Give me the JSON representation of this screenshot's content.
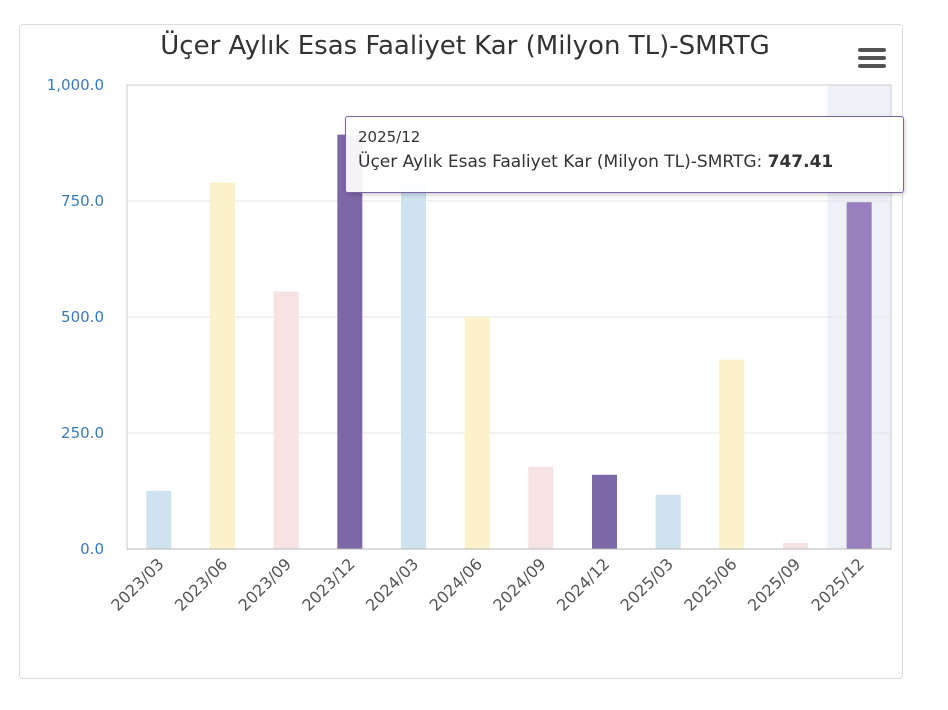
{
  "chart_data": {
    "type": "bar",
    "title": "Üçer Aylık Esas Faaliyet Kar (Milyon TL)-SMRTG",
    "xlabel": "",
    "ylabel": "",
    "ylim": [
      0,
      1000
    ],
    "yticks": [
      "0.0",
      "250.0",
      "500.0",
      "750.0",
      "1,000.0"
    ],
    "categories": [
      "2023/03",
      "2023/06",
      "2023/09",
      "2023/12",
      "2024/03",
      "2024/06",
      "2024/09",
      "2024/12",
      "2025/03",
      "2025/06",
      "2025/09",
      "2025/12"
    ],
    "values": [
      125,
      790,
      555,
      893,
      790,
      500,
      177,
      160,
      117,
      408,
      13,
      747.41
    ],
    "colors": [
      "#cfe2f0",
      "#fbf2cb",
      "#f7e3e2",
      "#7e67a7",
      "#cfe2f0",
      "#fbf2cb",
      "#f7e3e2",
      "#7e67a7",
      "#cfe2f0",
      "#fbf2cb",
      "#f7e3e2",
      "#9780bd"
    ],
    "highlight_band_color": "#eef2f7",
    "grid": true,
    "highlighted_category": "2025/12"
  },
  "tooltip": {
    "header": "2025/12",
    "series_label": "Üçer Aylık Esas Faaliyet Kar (Milyon TL)-SMRTG: ",
    "value": "747.41"
  },
  "menu": {
    "icon": "hamburger-menu-icon"
  }
}
